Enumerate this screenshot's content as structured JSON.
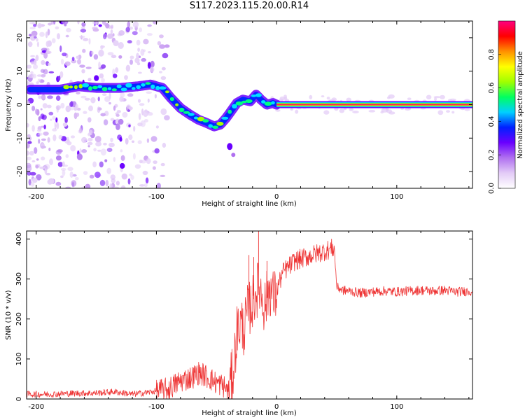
{
  "title": "S117.2023.115.20.00.R14",
  "chart_data": [
    {
      "type": "heatmap",
      "xlabel": "Height of straight line (km)",
      "ylabel": "Frequency (Hz)",
      "xlim": [
        -208,
        163
      ],
      "ylim": [
        -25,
        25
      ],
      "xticks": [
        -200,
        -100,
        0,
        100
      ],
      "yticks": [
        20,
        10,
        0,
        -10,
        -20
      ],
      "colorbar": {
        "label": "Normalized spectral amplitude",
        "range": [
          0,
          1
        ],
        "ticks": [
          "0.0",
          "0.2",
          "0.4",
          "0.6",
          "0.8"
        ],
        "colormap": [
          "#ffffff",
          "#e3cbf7",
          "#b070f0",
          "#6a00ff",
          "#0020ff",
          "#00d0ff",
          "#00ff60",
          "#a0ff00",
          "#ffff00",
          "#ff9000",
          "#ff0000",
          "#ff0080"
        ]
      },
      "ridge": {
        "x": [
          -205,
          -180,
          -165,
          -150,
          -130,
          -115,
          -105,
          -95,
          -88,
          -80,
          -72,
          -65,
          -58,
          -52,
          -47,
          -42,
          -38,
          -33,
          -28,
          -22,
          -17,
          -13,
          -8,
          -3,
          0,
          20,
          60,
          100,
          163
        ],
        "y": [
          4.5,
          4.5,
          5.5,
          5,
          5,
          5.5,
          6,
          5,
          2,
          -1,
          -3,
          -4.5,
          -5.5,
          -6.5,
          -6,
          -4,
          -2,
          0.5,
          1.5,
          1,
          3,
          1.5,
          0,
          0.5,
          0,
          0,
          0,
          0,
          0
        ]
      }
    },
    {
      "type": "line",
      "xlabel": "Height of straight line (km)",
      "ylabel": "SNR (10 * v/v)",
      "xlim": [
        -208,
        163
      ],
      "ylim": [
        0,
        420
      ],
      "xticks": [
        -200,
        -100,
        0,
        100
      ],
      "yticks": [
        0,
        100,
        200,
        300,
        400
      ],
      "series": [
        {
          "color": "#ee3333",
          "x": [
            -208,
            -190,
            -170,
            -150,
            -135,
            -120,
            -110,
            -100,
            -95,
            -90,
            -85,
            -80,
            -75,
            -70,
            -65,
            -60,
            -55,
            -50,
            -45,
            -40,
            -36,
            -33,
            -30,
            -27,
            -24,
            -20,
            -17,
            -14,
            -10,
            -6,
            -2,
            2,
            6,
            10,
            15,
            20,
            25,
            30,
            35,
            40,
            45,
            48,
            50,
            55,
            60,
            70,
            80,
            90,
            100,
            110,
            120,
            130,
            140,
            150,
            163
          ],
          "y": [
            12,
            12,
            14,
            15,
            18,
            12,
            15,
            20,
            22,
            25,
            35,
            45,
            50,
            55,
            65,
            60,
            50,
            40,
            35,
            20,
            70,
            170,
            190,
            175,
            220,
            240,
            270,
            280,
            230,
            280,
            250,
            290,
            320,
            330,
            345,
            350,
            355,
            360,
            365,
            370,
            375,
            378,
            280,
            272,
            270,
            265,
            268,
            270,
            268,
            270,
            272,
            270,
            272,
            268,
            270
          ]
        }
      ]
    }
  ]
}
